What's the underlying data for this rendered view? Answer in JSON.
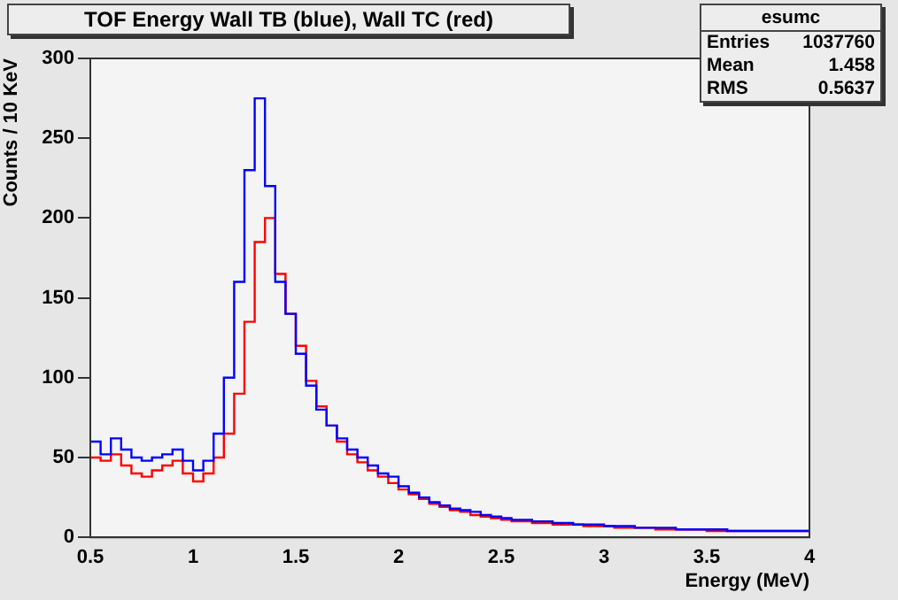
{
  "chart_data": {
    "type": "histogram",
    "title": "TOF Energy Wall TB (blue), Wall TC (red)",
    "xlabel": "Energy (MeV)",
    "ylabel": "Counts / 10 KeV",
    "annotations": [
      "esumc",
      "Entries 1037760",
      "Mean 1.458",
      "RMS 0.5637"
    ],
    "bins": [
      0.5,
      0.55,
      0.6,
      0.65,
      0.7,
      0.75,
      0.8,
      0.85,
      0.9,
      0.95,
      1.0,
      1.05,
      1.1,
      1.15,
      1.2,
      1.25,
      1.3,
      1.35,
      1.4,
      1.45,
      1.5,
      1.55,
      1.6,
      1.65,
      1.7,
      1.75,
      1.8,
      1.85,
      1.9,
      1.95,
      2.0,
      2.05,
      2.1,
      2.15,
      2.2,
      2.25,
      2.3,
      2.35,
      2.4,
      2.45,
      2.5,
      2.55,
      2.6,
      2.65,
      2.7,
      2.75,
      2.8,
      2.85,
      2.9,
      2.95,
      3.0,
      3.05,
      3.1,
      3.15,
      3.2,
      3.25,
      3.3,
      3.35,
      3.4,
      3.45,
      3.5,
      3.55,
      3.6,
      3.65,
      3.7,
      3.75,
      3.8,
      3.85,
      3.9,
      3.95,
      4.0
    ],
    "series": [
      {
        "color": "#0000ff",
        "values": [
          60,
          52,
          62,
          55,
          50,
          48,
          50,
          52,
          55,
          48,
          42,
          48,
          65,
          100,
          160,
          230,
          275,
          220,
          160,
          140,
          115,
          95,
          80,
          70,
          62,
          55,
          50,
          45,
          40,
          38,
          32,
          28,
          25,
          22,
          20,
          18,
          17,
          16,
          14,
          13,
          12,
          11,
          11,
          10,
          10,
          9,
          9,
          8,
          8,
          8,
          7,
          7,
          7,
          6,
          6,
          6,
          6,
          5,
          5,
          5,
          5,
          5,
          4,
          4,
          4,
          4,
          4,
          4,
          4,
          4
        ]
      },
      {
        "color": "#ff0000",
        "values": [
          50,
          48,
          52,
          45,
          40,
          38,
          42,
          45,
          48,
          40,
          35,
          40,
          50,
          65,
          90,
          135,
          185,
          200,
          165,
          140,
          120,
          98,
          82,
          70,
          60,
          52,
          47,
          42,
          38,
          34,
          30,
          27,
          24,
          21,
          19,
          17,
          16,
          14,
          13,
          12,
          11,
          10,
          10,
          9,
          9,
          8,
          8,
          8,
          7,
          7,
          7,
          6,
          6,
          6,
          6,
          5,
          5,
          5,
          5,
          5,
          4,
          4,
          4,
          4,
          4,
          4,
          4,
          4,
          4,
          4
        ]
      }
    ],
    "xlim": [
      0.5,
      4
    ],
    "ylim": [
      0,
      300
    ],
    "xticks": [
      0.5,
      1,
      1.5,
      2,
      2.5,
      3,
      3.5,
      4
    ],
    "yticks": [
      0,
      50,
      100,
      150,
      200,
      250,
      300
    ]
  }
}
